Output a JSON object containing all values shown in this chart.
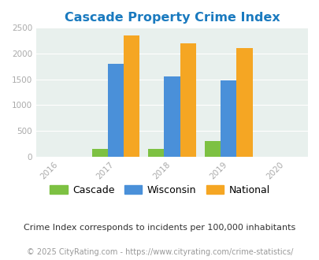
{
  "title": "Cascade Property Crime Index",
  "title_color": "#1a7abf",
  "years": [
    2016,
    2017,
    2018,
    2019,
    2020
  ],
  "bar_years": [
    2017,
    2018,
    2019
  ],
  "cascade": [
    150,
    140,
    300
  ],
  "wisconsin": [
    1800,
    1560,
    1480
  ],
  "national": [
    2350,
    2200,
    2100
  ],
  "cascade_color": "#7dc142",
  "wisconsin_color": "#4a90d9",
  "national_color": "#f5a623",
  "ylim": [
    0,
    2500
  ],
  "yticks": [
    0,
    500,
    1000,
    1500,
    2000,
    2500
  ],
  "legend_labels": [
    "Cascade",
    "Wisconsin",
    "National"
  ],
  "footnote1": "Crime Index corresponds to incidents per 100,000 inhabitants",
  "footnote2": "© 2025 CityRating.com - https://www.cityrating.com/crime-statistics/",
  "bar_width": 0.28,
  "grid_color": "#dde8e4",
  "axis_bg": "#e8f0ed",
  "tick_color": "#aaaaaa",
  "tick_fontsize": 7.5,
  "title_fontsize": 11.5,
  "footnote1_fontsize": 8,
  "footnote2_fontsize": 7,
  "legend_fontsize": 9
}
